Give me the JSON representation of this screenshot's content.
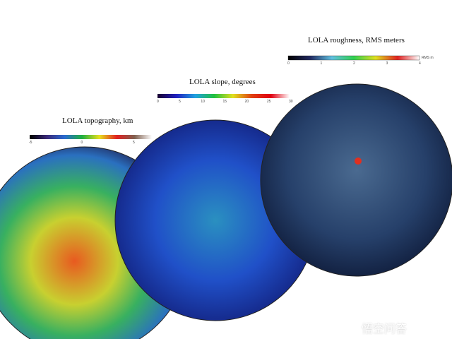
{
  "panels": [
    {
      "title": "LOLA topography, km",
      "ticks": [
        "-5",
        "0",
        "5"
      ],
      "colors": [
        "#000000",
        "#3a2a7a",
        "#2a6ad0",
        "#20b040",
        "#e8e020",
        "#e02020",
        "#806050",
        "#ffffff"
      ]
    },
    {
      "title": "LOLA slope, degrees",
      "ticks": [
        "0",
        "5",
        "10",
        "15",
        "20",
        "25",
        "30"
      ],
      "colors": [
        "#1a0030",
        "#2020c0",
        "#20a0e0",
        "#20c040",
        "#e0e020",
        "#e04010",
        "#e00010",
        "#ffffff"
      ]
    },
    {
      "title": "LOLA roughness, RMS meters",
      "ticks": [
        "0",
        "1",
        "2",
        "3",
        "4"
      ],
      "unit": "RMS m",
      "colors": [
        "#000000",
        "#202860",
        "#60c0e0",
        "#30d050",
        "#e0e020",
        "#e02020",
        "#ffffff"
      ]
    }
  ],
  "watermark": "悟空问答"
}
